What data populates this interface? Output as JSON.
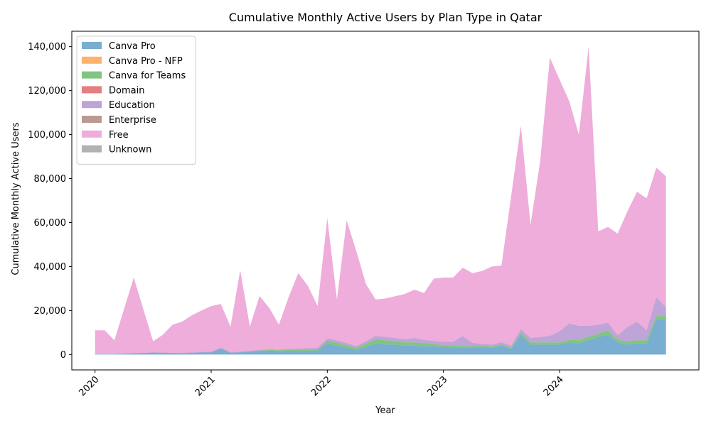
{
  "chart_data": {
    "type": "area",
    "stacked": true,
    "title": "Cumulative Monthly Active Users by Plan Type in Qatar",
    "xlabel": "Year",
    "ylabel": "Cumulative Monthly Active Users",
    "x_ticks": [
      "2020",
      "2021",
      "2022",
      "2023",
      "2024"
    ],
    "y_ticks": [
      "0",
      "20,000",
      "40,000",
      "60,000",
      "80,000",
      "100,000",
      "120,000",
      "140,000"
    ],
    "ylim": [
      -7000,
      147000
    ],
    "legend_position": "top-left",
    "grid": false,
    "x": [
      "2020-01",
      "2020-02",
      "2020-03",
      "2020-05",
      "2020-07",
      "2020-08",
      "2020-09",
      "2020-10",
      "2020-11",
      "2020-12",
      "2021-01",
      "2021-02",
      "2021-03",
      "2021-04",
      "2021-05",
      "2021-06",
      "2021-07",
      "2021-08",
      "2021-09",
      "2021-10",
      "2021-11",
      "2021-12",
      "2022-01",
      "2022-02",
      "2022-03",
      "2022-04",
      "2022-05",
      "2022-06",
      "2022-07",
      "2022-08",
      "2022-09",
      "2022-10",
      "2022-11",
      "2022-12",
      "2023-01",
      "2023-02",
      "2023-03",
      "2023-04",
      "2023-05",
      "2023-06",
      "2023-07",
      "2023-08",
      "2023-09",
      "2023-10",
      "2023-11",
      "2023-12",
      "2024-01",
      "2024-02",
      "2024-03",
      "2024-04",
      "2024-05",
      "2024-06",
      "2024-07",
      "2024-08",
      "2024-09",
      "2024-10",
      "2024-11",
      "2024-12"
    ],
    "series": [
      {
        "name": "Canva Pro",
        "color": "#1f77b4",
        "values": [
          200,
          200,
          200,
          600,
          900,
          800,
          700,
          600,
          800,
          900,
          900,
          2800,
          800,
          1000,
          1300,
          1700,
          1800,
          1600,
          1700,
          1700,
          1700,
          1700,
          5000,
          4000,
          3000,
          2000,
          3500,
          5000,
          4500,
          4500,
          4000,
          4000,
          3700,
          3700,
          3400,
          3300,
          3000,
          3000,
          3000,
          3000,
          4000,
          2500,
          9000,
          4500,
          4500,
          4500,
          4500,
          5500,
          5000,
          6500,
          8000,
          9000,
          5500,
          4500,
          5000,
          5000,
          16000,
          16000
        ]
      },
      {
        "name": "Canva Pro - NFP",
        "color": "#ff7f0e",
        "values": [
          0,
          0,
          0,
          0,
          0,
          0,
          0,
          0,
          0,
          0,
          0,
          0,
          0,
          0,
          0,
          0,
          0,
          0,
          0,
          0,
          0,
          0,
          0,
          0,
          0,
          0,
          0,
          0,
          0,
          0,
          0,
          0,
          0,
          0,
          0,
          0,
          0,
          0,
          0,
          0,
          0,
          0,
          0,
          0,
          0,
          0,
          0,
          0,
          0,
          0,
          0,
          0,
          0,
          0,
          0,
          0,
          0,
          0
        ]
      },
      {
        "name": "Canva for Teams",
        "color": "#2ca02c",
        "values": [
          0,
          0,
          0,
          0,
          0,
          0,
          0,
          0,
          0,
          0,
          0,
          0,
          0,
          0,
          100,
          100,
          300,
          300,
          400,
          500,
          600,
          600,
          1300,
          1400,
          1200,
          1000,
          1500,
          2000,
          2000,
          1500,
          1500,
          1500,
          1500,
          1000,
          900,
          900,
          900,
          800,
          800,
          700,
          600,
          500,
          1000,
          1000,
          1000,
          1000,
          1000,
          1200,
          1500,
          1500,
          1500,
          2000,
          1200,
          1500,
          1500,
          1500,
          1500,
          1500
        ]
      },
      {
        "name": "Domain",
        "color": "#d62728",
        "values": [
          0,
          0,
          0,
          0,
          0,
          0,
          0,
          0,
          0,
          0,
          0,
          0,
          0,
          0,
          0,
          0,
          0,
          0,
          0,
          0,
          0,
          0,
          0,
          0,
          0,
          0,
          0,
          0,
          0,
          0,
          0,
          0,
          0,
          0,
          0,
          0,
          0,
          0,
          0,
          0,
          0,
          0,
          0,
          0,
          0,
          0,
          0,
          0,
          0,
          0,
          0,
          0,
          0,
          0,
          0,
          0,
          0,
          0
        ]
      },
      {
        "name": "Education",
        "color": "#9467bd",
        "values": [
          0,
          0,
          0,
          0,
          0,
          100,
          100,
          200,
          200,
          300,
          400,
          300,
          300,
          300,
          300,
          300,
          300,
          300,
          500,
          500,
          600,
          700,
          1000,
          1000,
          1000,
          800,
          1000,
          1500,
          1500,
          1500,
          1500,
          2000,
          1500,
          1500,
          1500,
          1500,
          4500,
          1500,
          1000,
          800,
          1000,
          1000,
          1500,
          2000,
          2500,
          3000,
          5000,
          7500,
          6500,
          5000,
          4000,
          3500,
          2000,
          6500,
          8500,
          4500,
          8500,
          4000
        ]
      },
      {
        "name": "Enterprise",
        "color": "#8c564b",
        "values": [
          0,
          0,
          0,
          0,
          0,
          0,
          0,
          0,
          0,
          0,
          0,
          0,
          0,
          0,
          0,
          0,
          0,
          0,
          0,
          0,
          0,
          0,
          0,
          0,
          0,
          0,
          0,
          0,
          0,
          0,
          0,
          0,
          0,
          0,
          0,
          0,
          0,
          0,
          0,
          0,
          0,
          0,
          0,
          0,
          0,
          0,
          0,
          0,
          0,
          0,
          0,
          0,
          0,
          0,
          0,
          0,
          0,
          0
        ]
      },
      {
        "name": "Free",
        "color": "#e377c2",
        "values": [
          10800,
          10800,
          6300,
          34400,
          5100,
          8100,
          12700,
          14200,
          16800,
          18800,
          20700,
          19900,
          11600,
          37000,
          11000,
          24500,
          18800,
          11400,
          23400,
          34300,
          28300,
          19000,
          54700,
          18600,
          55800,
          43200,
          26000,
          16500,
          17500,
          19000,
          20500,
          22000,
          21300,
          28300,
          29200,
          29300,
          31100,
          31700,
          33200,
          35500,
          34900,
          68000,
          92500,
          51500,
          80000,
          126500,
          114500,
          101000,
          87000,
          127000,
          42500,
          43500,
          46300,
          52500,
          59000,
          60000,
          59000,
          59500
        ]
      },
      {
        "name": "Unknown",
        "color": "#7f7f7f",
        "values": [
          0,
          0,
          0,
          0,
          0,
          0,
          0,
          0,
          0,
          0,
          0,
          0,
          0,
          0,
          0,
          0,
          0,
          0,
          0,
          0,
          0,
          0,
          0,
          0,
          0,
          0,
          0,
          0,
          0,
          0,
          0,
          0,
          0,
          0,
          0,
          0,
          0,
          0,
          0,
          0,
          0,
          0,
          0,
          0,
          0,
          0,
          0,
          0,
          0,
          0,
          0,
          0,
          0,
          0,
          0,
          0,
          0,
          0
        ]
      }
    ]
  }
}
